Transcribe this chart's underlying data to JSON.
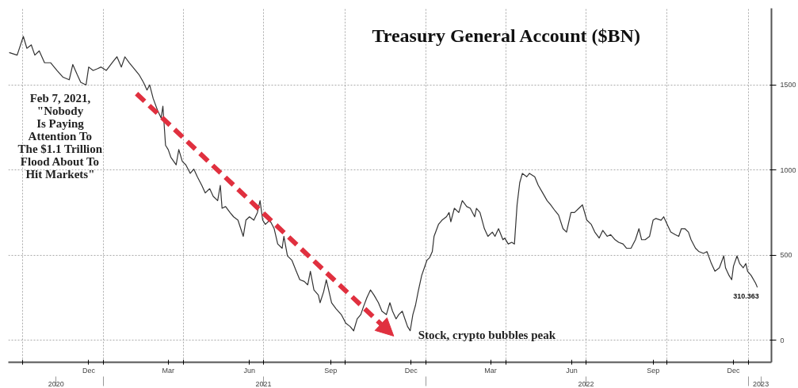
{
  "chart_data": {
    "type": "line",
    "title": "Treasury General Account ($BN)",
    "color": "#333333",
    "grid": true,
    "x": [
      "2020-09-16",
      "2020-09-25",
      "2020-10-02",
      "2020-10-06",
      "2020-10-11",
      "2020-10-15",
      "2020-10-20",
      "2020-10-26",
      "2020-11-02",
      "2020-11-09",
      "2020-11-16",
      "2020-11-23",
      "2020-11-27",
      "2020-12-02",
      "2020-12-06",
      "2020-12-12",
      "2020-12-15",
      "2020-12-20",
      "2020-12-25",
      "2020-12-29",
      "2021-01-04",
      "2021-01-12",
      "2021-01-16",
      "2021-01-21",
      "2021-01-25",
      "2021-01-30",
      "2021-02-06",
      "2021-02-10",
      "2021-02-15",
      "2021-02-19",
      "2021-02-22",
      "2021-02-26",
      "2021-03-03",
      "2021-03-07",
      "2021-03-09",
      "2021-03-12",
      "2021-03-15",
      "2021-03-18",
      "2021-03-24",
      "2021-03-27",
      "2021-03-31",
      "2021-04-04",
      "2021-04-09",
      "2021-04-13",
      "2021-04-17",
      "2021-04-22",
      "2021-04-26",
      "2021-05-01",
      "2021-05-05",
      "2021-05-10",
      "2021-05-13",
      "2021-05-15",
      "2021-05-19",
      "2021-05-24",
      "2021-05-28",
      "2021-06-02",
      "2021-06-08",
      "2021-06-11",
      "2021-06-15",
      "2021-06-20",
      "2021-06-24",
      "2021-06-27",
      "2021-06-30",
      "2021-07-03",
      "2021-07-08",
      "2021-07-13",
      "2021-07-17",
      "2021-07-22",
      "2021-07-24",
      "2021-07-28",
      "2021-08-02",
      "2021-08-07",
      "2021-08-11",
      "2021-08-16",
      "2021-08-20",
      "2021-08-23",
      "2021-08-27",
      "2021-09-01",
      "2021-09-03",
      "2021-09-07",
      "2021-09-10",
      "2021-09-12",
      "2021-09-16",
      "2021-09-21",
      "2021-09-27",
      "2021-10-02",
      "2021-10-07",
      "2021-10-11",
      "2021-10-15",
      "2021-10-19",
      "2021-10-22",
      "2021-10-26",
      "2021-10-30",
      "2021-11-03",
      "2021-11-08",
      "2021-11-12",
      "2021-11-17",
      "2021-11-21",
      "2021-11-24",
      "2021-11-28",
      "2021-12-01",
      "2021-12-05",
      "2021-12-08",
      "2021-12-11",
      "2021-12-14",
      "2021-12-17",
      "2021-12-20",
      "2021-12-23",
      "2021-12-27",
      "2021-12-30",
      "2022-01-02",
      "2022-01-05",
      "2022-01-08",
      "2022-01-10",
      "2022-01-15",
      "2022-01-19",
      "2022-01-24",
      "2022-01-27",
      "2022-01-29",
      "2022-02-02",
      "2022-02-07",
      "2022-02-11",
      "2022-02-16",
      "2022-02-20",
      "2022-02-25",
      "2022-02-27",
      "2022-03-03",
      "2022-03-08",
      "2022-03-12",
      "2022-03-17",
      "2022-03-20",
      "2022-03-24",
      "2022-03-29",
      "2022-03-31",
      "2022-04-04",
      "2022-04-08",
      "2022-04-11",
      "2022-04-14",
      "2022-04-17",
      "2022-04-20",
      "2022-04-25",
      "2022-04-28",
      "2022-05-04",
      "2022-05-08",
      "2022-05-13",
      "2022-05-18",
      "2022-05-22",
      "2022-05-27",
      "2022-05-31",
      "2022-06-05",
      "2022-06-09",
      "2022-06-14",
      "2022-06-18",
      "2022-06-23",
      "2022-06-27",
      "2022-07-02",
      "2022-07-07",
      "2022-07-11",
      "2022-07-16",
      "2022-07-20",
      "2022-07-25",
      "2022-07-29",
      "2022-08-03",
      "2022-08-07",
      "2022-08-12",
      "2022-08-16",
      "2022-08-21",
      "2022-08-26",
      "2022-08-30",
      "2022-09-02",
      "2022-09-06",
      "2022-09-11",
      "2022-09-15",
      "2022-09-18",
      "2022-09-24",
      "2022-09-27",
      "2022-10-01",
      "2022-10-05",
      "2022-10-10",
      "2022-10-14",
      "2022-10-17",
      "2022-10-21",
      "2022-10-25",
      "2022-10-28",
      "2022-11-02",
      "2022-11-06",
      "2022-11-11",
      "2022-11-15",
      "2022-11-20",
      "2022-11-24",
      "2022-11-29",
      "2022-12-04",
      "2022-12-06",
      "2022-12-10",
      "2022-12-13",
      "2022-12-15",
      "2022-12-19",
      "2022-12-22",
      "2022-12-26",
      "2022-12-29",
      "2022-12-31",
      "2023-01-04",
      "2023-01-09",
      "2023-01-11"
    ],
    "values": [
      1690,
      1675,
      1785,
      1715,
      1735,
      1675,
      1700,
      1630,
      1630,
      1585,
      1545,
      1530,
      1620,
      1560,
      1515,
      1500,
      1605,
      1585,
      1595,
      1605,
      1585,
      1640,
      1665,
      1605,
      1665,
      1630,
      1585,
      1560,
      1515,
      1470,
      1500,
      1420,
      1350,
      1305,
      1375,
      1145,
      1120,
      1075,
      1030,
      1120,
      1050,
      1030,
      980,
      1005,
      960,
      910,
      865,
      890,
      845,
      820,
      910,
      775,
      785,
      750,
      725,
      705,
      610,
      705,
      725,
      705,
      750,
      820,
      705,
      680,
      705,
      655,
      565,
      540,
      610,
      495,
      470,
      405,
      355,
      345,
      325,
      405,
      295,
      265,
      220,
      285,
      355,
      310,
      220,
      185,
      150,
      100,
      80,
      55,
      125,
      150,
      195,
      250,
      295,
      265,
      220,
      170,
      150,
      220,
      170,
      125,
      150,
      170,
      125,
      80,
      55,
      150,
      205,
      285,
      380,
      425,
      470,
      485,
      520,
      610,
      680,
      705,
      725,
      750,
      695,
      775,
      750,
      820,
      785,
      775,
      725,
      775,
      750,
      655,
      610,
      635,
      610,
      655,
      590,
      600,
      565,
      575,
      565,
      795,
      925,
      980,
      960,
      980,
      960,
      910,
      865,
      820,
      795,
      760,
      735,
      655,
      635,
      750,
      750,
      775,
      795,
      705,
      680,
      635,
      600,
      645,
      610,
      620,
      590,
      575,
      565,
      540,
      540,
      590,
      655,
      590,
      590,
      610,
      705,
      715,
      705,
      725,
      680,
      635,
      620,
      610,
      655,
      655,
      635,
      590,
      540,
      520,
      510,
      520,
      450,
      405,
      425,
      495,
      425,
      380,
      355,
      435,
      495,
      450,
      425,
      450,
      405,
      380,
      335,
      310.363
    ],
    "xlim": [
      "2020-09-15",
      "2023-01-27"
    ],
    "xticks": [
      {
        "value": "2020-10-01",
        "label": null
      },
      {
        "value": "2020-12-15",
        "label": "Dec"
      },
      {
        "value": "2021-01-01",
        "label": null
      },
      {
        "value": "2021-03-15",
        "label": "Mar"
      },
      {
        "value": "2021-04-01",
        "label": null
      },
      {
        "value": "2021-06-15",
        "label": "Jun"
      },
      {
        "value": "2021-07-01",
        "label": null
      },
      {
        "value": "2021-09-15",
        "label": "Sep"
      },
      {
        "value": "2021-10-01",
        "label": null
      },
      {
        "value": "2021-12-15",
        "label": "Dec"
      },
      {
        "value": "2022-01-01",
        "label": null
      },
      {
        "value": "2022-03-15",
        "label": "Mar"
      },
      {
        "value": "2022-04-01",
        "label": null
      },
      {
        "value": "2022-06-15",
        "label": "Jun"
      },
      {
        "value": "2022-07-01",
        "label": null
      },
      {
        "value": "2022-09-15",
        "label": "Sep"
      },
      {
        "value": "2022-10-01",
        "label": null
      },
      {
        "value": "2022-12-15",
        "label": "Dec"
      },
      {
        "value": "2023-01-01",
        "label": null
      }
    ],
    "x2lim": [
      "2020-09-15",
      "2023-01-27"
    ],
    "x2ticks": [
      {
        "value": "2020-11-08",
        "label": "2020"
      },
      {
        "value": "2021-01-01",
        "label": null
      },
      {
        "value": "2021-07-01",
        "label": "2021"
      },
      {
        "value": "2022-01-01",
        "label": null
      },
      {
        "value": "2022-07-01",
        "label": "2022"
      },
      {
        "value": "2023-01-01",
        "label": null
      },
      {
        "value": "2023-01-15",
        "label": "2023"
      }
    ],
    "ylim": [
      -130,
      1950
    ],
    "yticks": [
      0,
      500,
      1000,
      1500
    ],
    "value_labels": [
      null,
      null,
      null,
      null,
      null,
      null,
      null,
      null,
      null,
      null,
      null,
      null,
      null,
      null,
      null,
      null,
      null,
      null,
      null,
      null,
      null,
      null,
      null,
      null,
      null,
      null,
      null,
      null,
      null,
      null,
      null,
      null,
      null,
      null,
      null,
      null,
      null,
      null,
      null,
      null,
      null,
      null,
      null,
      null,
      null,
      null,
      null,
      null,
      null,
      null,
      null,
      null,
      null,
      null,
      null,
      null,
      null,
      null,
      null,
      null,
      null,
      null,
      null,
      null,
      null,
      null,
      null,
      null,
      null,
      null,
      null,
      null,
      null,
      null,
      null,
      null,
      null,
      null,
      null,
      null,
      null,
      null,
      null,
      null,
      null,
      null,
      null,
      null,
      null,
      null,
      null,
      null,
      null,
      null,
      null,
      null,
      null,
      null,
      null,
      null,
      null,
      null,
      null,
      null,
      null,
      null,
      null,
      null,
      null,
      null,
      null,
      null,
      null,
      null,
      null,
      null,
      null,
      null,
      null,
      null,
      null,
      null,
      null,
      null,
      null,
      null,
      null,
      null,
      null,
      null,
      null,
      null,
      null,
      null,
      null,
      null,
      null,
      null,
      null,
      null,
      null,
      null,
      null,
      null,
      null,
      null,
      null,
      null,
      null,
      null,
      null,
      null,
      null,
      null,
      null,
      null,
      null,
      null,
      null,
      null,
      null,
      null,
      null,
      null,
      null,
      null,
      null,
      null,
      null,
      null,
      null,
      null,
      null,
      null,
      null,
      null,
      null,
      null,
      null,
      null,
      null,
      null,
      null,
      null,
      null,
      null,
      null,
      null,
      null,
      null,
      null,
      null,
      null,
      null,
      null,
      null,
      null,
      null,
      null,
      null,
      null,
      null,
      null,
      "310.363"
    ],
    "annotations": [
      "Feb 7, 2021,\n\"Nobody\nIs Paying\nAttention To\nThe $1.1 Trillion\nFlood About To\nHit Markets\"",
      "Stock, crypto bubbles peak"
    ]
  }
}
